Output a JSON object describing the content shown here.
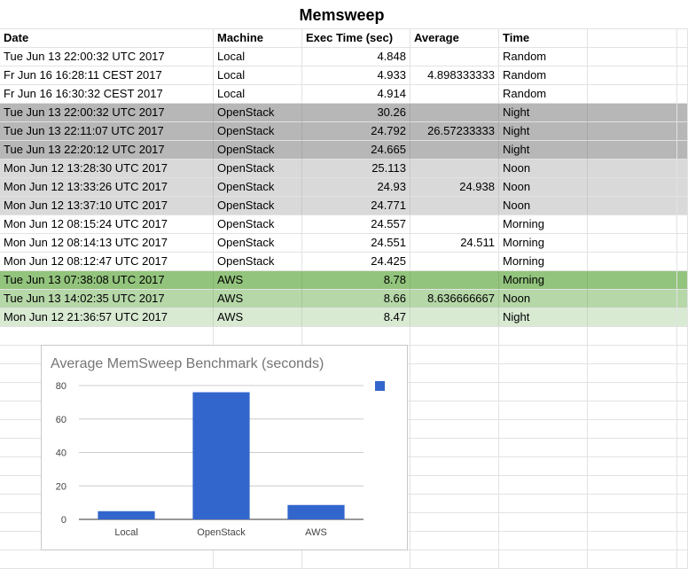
{
  "sheet": {
    "title": "Memsweep",
    "headers": [
      "Date",
      "Machine",
      "Exec Time (sec)",
      "Average",
      "Time"
    ],
    "rows": [
      {
        "date": "Tue Jun 13 22:00:32 UTC 2017",
        "machine": "Local",
        "exec": "4.848",
        "avg": "",
        "time": "Random",
        "bg": "#ffffff"
      },
      {
        "date": "Fr  Jun 16 16:28:11 CEST 2017",
        "machine": "Local",
        "exec": "4.933",
        "avg": "4.898333333",
        "time": "Random",
        "bg": "#ffffff"
      },
      {
        "date": "Fr  Jun 16 16:30:32 CEST 2017",
        "machine": "Local",
        "exec": "4.914",
        "avg": "",
        "time": "Random",
        "bg": "#ffffff"
      },
      {
        "date": "Tue Jun 13 22:00:32 UTC 2017",
        "machine": "OpenStack",
        "exec": "30.26",
        "avg": "",
        "time": "Night",
        "bg": "#b7b7b7"
      },
      {
        "date": "Tue Jun 13 22:11:07 UTC 2017",
        "machine": "OpenStack",
        "exec": "24.792",
        "avg": "26.57233333",
        "time": "Night",
        "bg": "#b7b7b7"
      },
      {
        "date": "Tue Jun 13 22:20:12 UTC 2017",
        "machine": "OpenStack",
        "exec": "24.665",
        "avg": "",
        "time": "Night",
        "bg": "#b7b7b7"
      },
      {
        "date": "Mon Jun 12 13:28:30 UTC 2017",
        "machine": "OpenStack",
        "exec": "25.113",
        "avg": "",
        "time": "Noon",
        "bg": "#d9d9d9"
      },
      {
        "date": "Mon Jun 12 13:33:26 UTC 2017",
        "machine": "OpenStack",
        "exec": "24.93",
        "avg": "24.938",
        "time": "Noon",
        "bg": "#d9d9d9"
      },
      {
        "date": "Mon Jun 12 13:37:10 UTC 2017",
        "machine": "OpenStack",
        "exec": "24.771",
        "avg": "",
        "time": "Noon",
        "bg": "#d9d9d9"
      },
      {
        "date": "Mon Jun 12 08:15:24 UTC 2017",
        "machine": "OpenStack",
        "exec": "24.557",
        "avg": "",
        "time": "Morning",
        "bg": "#ffffff"
      },
      {
        "date": "Mon Jun 12 08:14:13 UTC 2017",
        "machine": "OpenStack",
        "exec": "24.551",
        "avg": "24.511",
        "time": "Morning",
        "bg": "#ffffff"
      },
      {
        "date": "Mon Jun 12 08:12:47 UTC 2017",
        "machine": "OpenStack",
        "exec": "24.425",
        "avg": "",
        "time": "Morning",
        "bg": "#ffffff"
      },
      {
        "date": "Tue Jun 13 07:38:08 UTC 2017",
        "machine": "AWS",
        "exec": "8.78",
        "avg": "",
        "time": "Morning",
        "bg": "#93c47d"
      },
      {
        "date": "Tue Jun 13 14:02:35 UTC 2017",
        "machine": "AWS",
        "exec": "8.66",
        "avg": "8.636666667",
        "time": "Noon",
        "bg": "#b6d7a8"
      },
      {
        "date": "Mon Jun 12 21:36:57 UTC 2017",
        "machine": "AWS",
        "exec": "8.47",
        "avg": "",
        "time": "Night",
        "bg": "#d9ead3"
      }
    ]
  },
  "chart_data": {
    "type": "bar",
    "title": "Average MemSweep Benchmark (seconds)",
    "categories": [
      "Local",
      "OpenStack",
      "AWS"
    ],
    "values": [
      4.9,
      76.0,
      8.6
    ],
    "ylim": [
      0,
      80
    ],
    "yticks": [
      0,
      20,
      40,
      60,
      80
    ],
    "xlabel": "",
    "ylabel": "",
    "grid": true,
    "legend": "right",
    "bar_color": "#3366cc"
  }
}
